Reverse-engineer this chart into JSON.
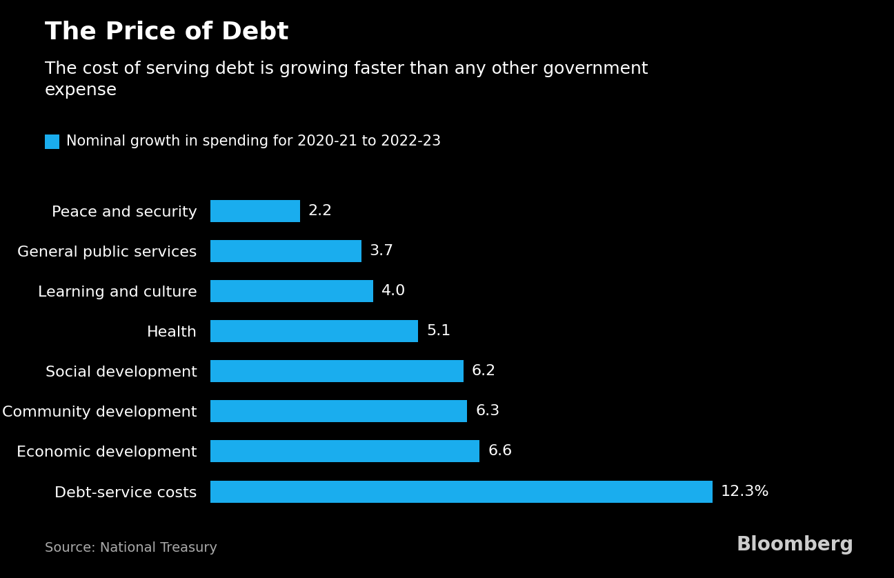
{
  "title": "The Price of Debt",
  "subtitle": "The cost of serving debt is growing faster than any other government\nexpense",
  "legend_label": "Nominal growth in spending for 2020-21 to 2022-23",
  "categories": [
    "Debt-service costs",
    "Economic development",
    "Community development",
    "Social development",
    "Health",
    "Learning and culture",
    "General public services",
    "Peace and security"
  ],
  "values": [
    12.3,
    6.6,
    6.3,
    6.2,
    5.1,
    4.0,
    3.7,
    2.2
  ],
  "value_labels": [
    "12.3%",
    "6.6",
    "6.3",
    "6.2",
    "5.1",
    "4.0",
    "3.7",
    "2.2"
  ],
  "bar_color": "#1AADEE",
  "background_color": "#000000",
  "text_color": "#FFFFFF",
  "source_color": "#AAAAAA",
  "bloomberg_color": "#CCCCCC",
  "source_text": "Source: National Treasury",
  "bloomberg_text": "Bloomberg",
  "title_fontsize": 26,
  "subtitle_fontsize": 18,
  "label_fontsize": 16,
  "value_fontsize": 16,
  "legend_fontsize": 15,
  "source_fontsize": 14,
  "bloomberg_fontsize": 20,
  "xlim_max": 15.0,
  "bar_height": 0.55
}
